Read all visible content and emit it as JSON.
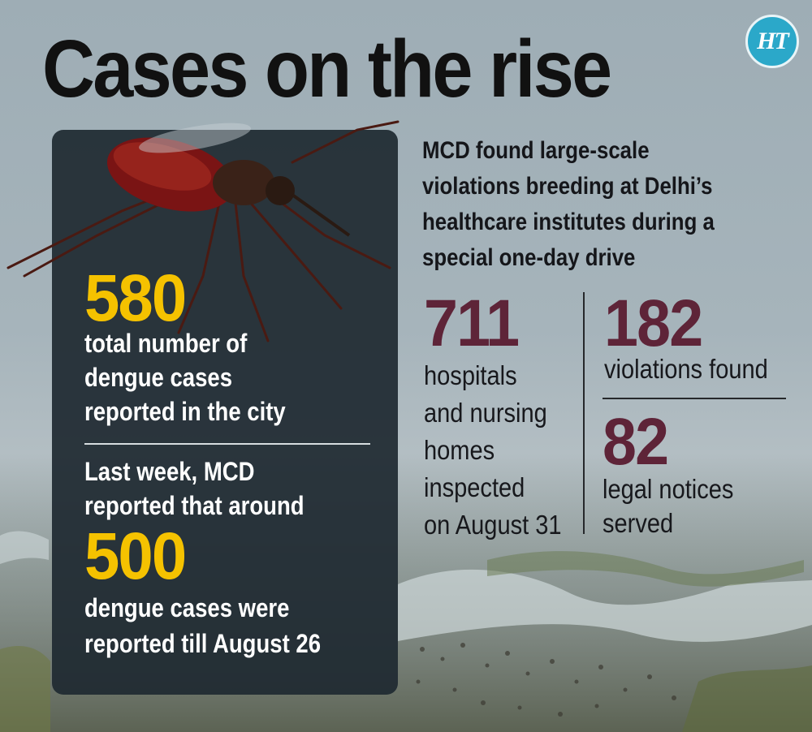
{
  "title": "Cases on the rise",
  "logo_text": "HT",
  "panel": {
    "total_value": "580",
    "total_lines": [
      "total number of",
      "dengue cases",
      "reported in the city"
    ],
    "lastweek_lines": [
      "Last week, MCD",
      "reported that around"
    ],
    "lastweek_value": "500",
    "lastweek_tail_lines": [
      "dengue cases were",
      "reported till August 26"
    ]
  },
  "intro_lines": [
    "MCD found large-scale",
    "violations breeding at Delhi’s",
    "healthcare institutes during a",
    "special one-day drive"
  ],
  "stats": {
    "inspected": {
      "value": "711",
      "lines": [
        "hospitals",
        "and nursing",
        "homes",
        "inspected",
        "on August 31"
      ]
    },
    "violations": {
      "value": "182",
      "label": "violations found"
    },
    "notices": {
      "value": "82",
      "lines": [
        "legal notices",
        "served"
      ]
    }
  },
  "colors": {
    "accent_yellow": "#f5c200",
    "stat_maroon": "#5e2438",
    "panel_bg": "#1f2a32",
    "logo_blue": "#2ba8c9"
  },
  "icons": {
    "logo": "ht-logo-icon",
    "illustration": "mosquito-icon"
  }
}
